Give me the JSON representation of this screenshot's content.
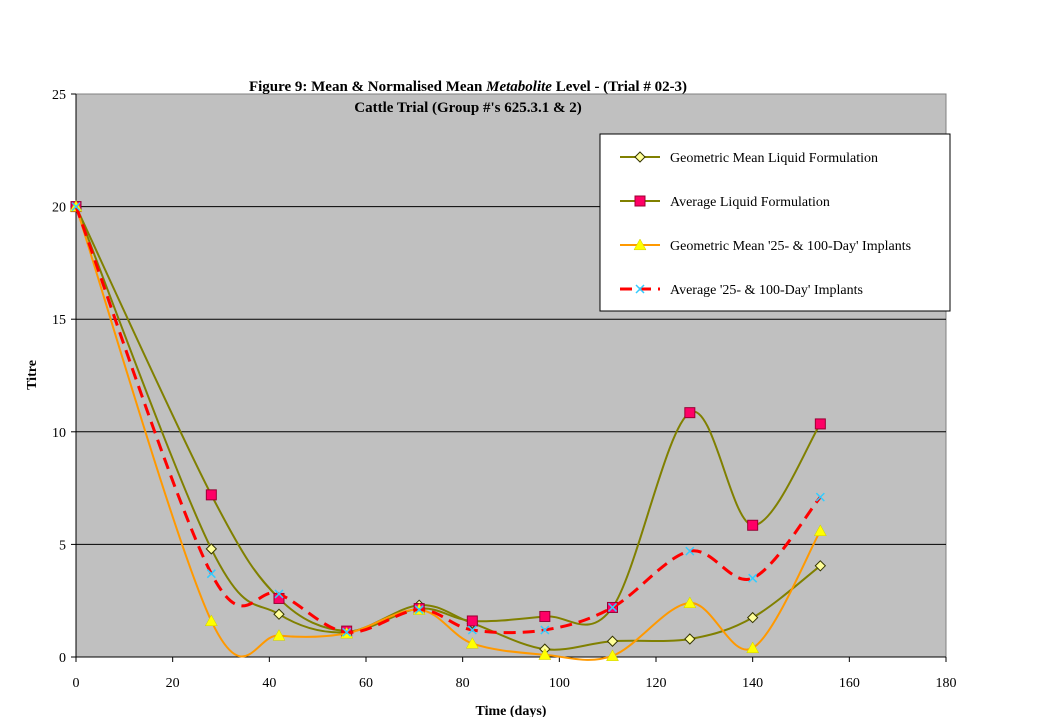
{
  "chart_data": {
    "type": "line",
    "title_parts": {
      "before": "Figure 9: Mean & Normalised Mean ",
      "italic": "Metabolite",
      "after": "  Level - (Trial # 02-3)"
    },
    "subtitle": "Cattle Trial (Group #'s 625.3.1 & 2)",
    "xlabel": "Time (days)",
    "ylabel": "Titre",
    "xlim": [
      0,
      180
    ],
    "ylim": [
      0,
      25
    ],
    "xticks": [
      0,
      20,
      40,
      60,
      80,
      100,
      120,
      140,
      160,
      180
    ],
    "yticks": [
      0,
      5,
      10,
      15,
      20,
      25
    ],
    "grid": "horizontal",
    "legend_position": "top-right",
    "plot_background": "#c0c0c0",
    "series": [
      {
        "name": "Geometric Mean Liquid Formulation",
        "color": "#808000",
        "line_style": "solid",
        "marker": "diamond",
        "marker_color": "#ffff99",
        "x": [
          0,
          28,
          42,
          56,
          71,
          82,
          97,
          111,
          127,
          140,
          154
        ],
        "y": [
          20,
          4.8,
          1.9,
          1.1,
          2.3,
          1.5,
          0.35,
          0.7,
          0.8,
          1.75,
          4.05
        ]
      },
      {
        "name": "Average Liquid Formulation",
        "color": "#808000",
        "line_style": "solid",
        "marker": "square",
        "marker_color": "#ff0066",
        "x": [
          0,
          28,
          42,
          56,
          71,
          82,
          97,
          111,
          127,
          140,
          154
        ],
        "y": [
          20,
          7.2,
          2.6,
          1.15,
          2.15,
          1.6,
          1.8,
          2.2,
          10.85,
          5.85,
          10.35
        ]
      },
      {
        "name": "Geometric Mean '25- & 100-Day' Implants",
        "color": "#ff9900",
        "line_style": "solid",
        "marker": "triangle",
        "marker_color": "#ffff00",
        "x": [
          0,
          28,
          42,
          56,
          71,
          82,
          97,
          111,
          127,
          140,
          154
        ],
        "y": [
          20,
          1.6,
          0.95,
          1.05,
          2.1,
          0.6,
          0.1,
          0.05,
          2.4,
          0.4,
          5.6
        ]
      },
      {
        "name": "Average '25- & 100-Day' Implants",
        "color": "#ff0000",
        "line_style": "dashed",
        "marker": "x",
        "marker_color": "#33ccff",
        "x": [
          0,
          28,
          42,
          56,
          71,
          82,
          97,
          111,
          127,
          140,
          154
        ],
        "y": [
          20,
          3.7,
          2.8,
          1.1,
          2.1,
          1.2,
          1.2,
          2.2,
          4.7,
          3.5,
          7.1
        ]
      }
    ]
  }
}
